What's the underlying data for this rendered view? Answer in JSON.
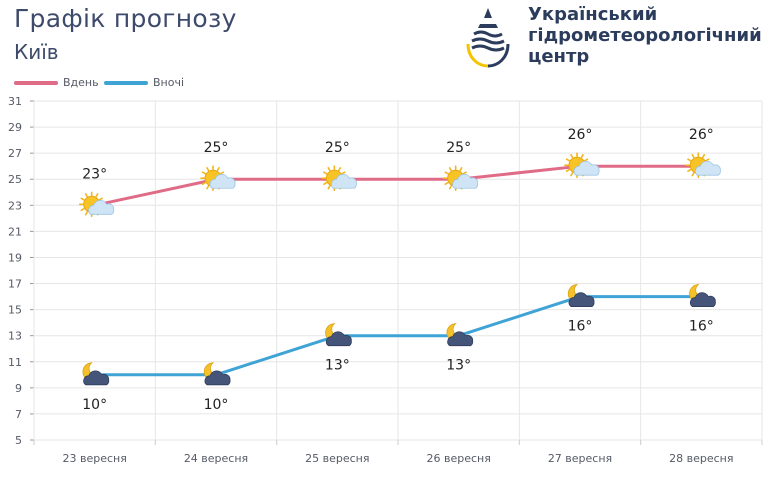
{
  "header": {
    "title": "Графік прогнозу",
    "city": "Київ"
  },
  "logo": {
    "icon": "water-drop-logo-icon",
    "line1": "Український",
    "line2": "гідрометеорологічний",
    "line3": "центр",
    "colors": {
      "dark": "#2c3c5c",
      "accent": "#f5c400"
    }
  },
  "chart_data": {
    "type": "line",
    "categories": [
      "23 вересня",
      "24 вересня",
      "25 вересня",
      "26 вересня",
      "27 вересня",
      "28 вересня"
    ],
    "series": [
      {
        "name": "Вдень",
        "color": "#e06b87",
        "values": [
          23,
          25,
          25,
          25,
          26,
          26
        ],
        "labels": [
          "23°",
          "25°",
          "25°",
          "25°",
          "26°",
          "26°"
        ],
        "label_position": "above",
        "icons": [
          "sun-cloud-icon",
          "sun-cloud-icon",
          "sun-cloud-icon",
          "sun-cloud-icon",
          "sun-cloud-icon",
          "sun-cloud-icon"
        ]
      },
      {
        "name": "Вночі",
        "color": "#3fa3d6",
        "values": [
          10,
          10,
          13,
          13,
          16,
          16
        ],
        "labels": [
          "10°",
          "10°",
          "13°",
          "13°",
          "16°",
          "16°"
        ],
        "label_position": "below",
        "icons": [
          "moon-cloud-icon",
          "moon-cloud-icon",
          "moon-cloud-icon",
          "moon-cloud-icon",
          "moon-cloud-icon",
          "moon-cloud-icon"
        ]
      }
    ],
    "yticks": [
      5,
      7,
      9,
      11,
      13,
      15,
      17,
      19,
      21,
      23,
      25,
      27,
      29,
      31
    ],
    "ylim": [
      5,
      31
    ],
    "grid": true,
    "legend_position": "top-left",
    "colors": {
      "grid": "#e6e6e6",
      "axis_text": "#555a66",
      "value_text": "#222222"
    }
  }
}
